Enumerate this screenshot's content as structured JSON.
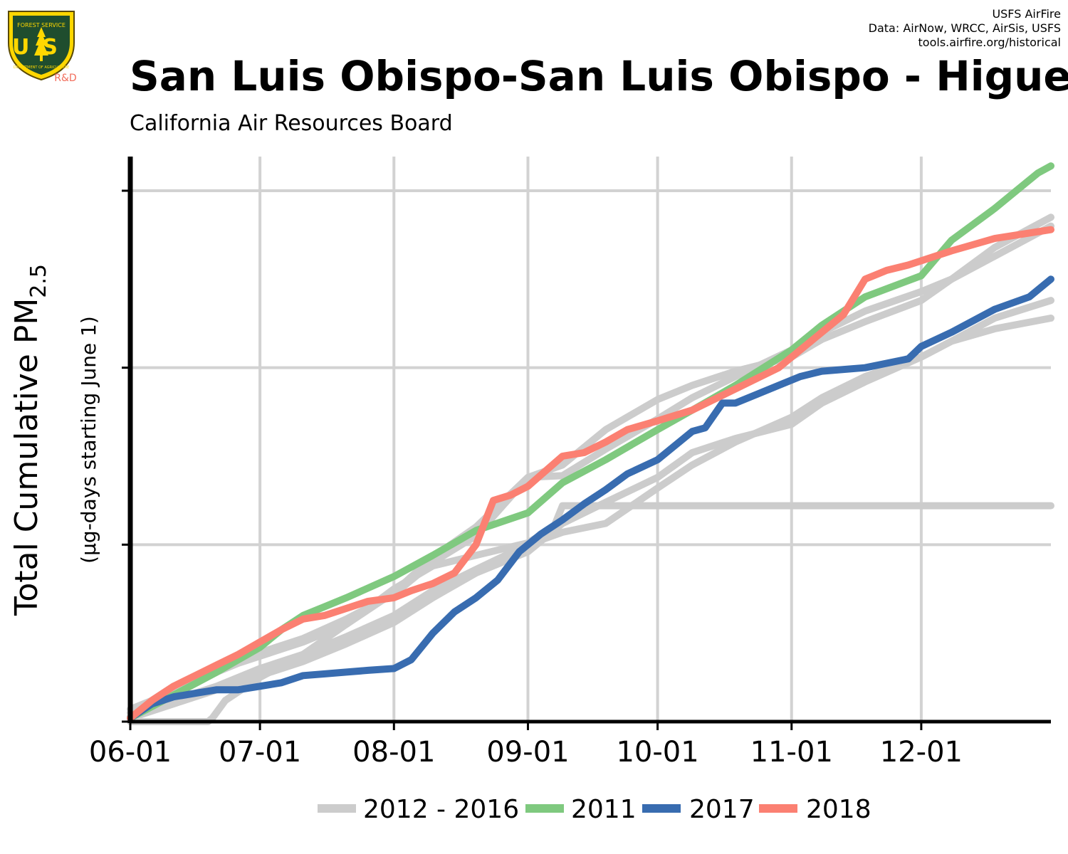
{
  "header": {
    "credits": [
      "USFS AirFire",
      "Data: AirNow, WRCC, AirSis, USFS",
      "tools.airfire.org/historical"
    ],
    "logo": {
      "text_top": "FOREST SERVICE",
      "text_main": "US",
      "text_bottom": "DEPARTMENT OF AGRICULTURE",
      "badge": "R&D"
    },
    "title": "San Luis Obispo-San Luis Obispo - Higue",
    "subtitle": "California Air Resources Board"
  },
  "chart_data": {
    "type": "line",
    "ylabel": "Total Cumulative PM",
    "ylabel_sub": "2.5",
    "ylabel2": "(μg-days starting June 1)",
    "x_tick_labels": [
      "06-01",
      "07-01",
      "08-01",
      "09-01",
      "10-01",
      "11-01",
      "12-01"
    ],
    "x_ticks_day": [
      0,
      30,
      61,
      92,
      122,
      153,
      183
    ],
    "xlim": [
      0,
      213
    ],
    "ylim": [
      0,
      3.2
    ],
    "y_ticks": [
      0,
      1,
      2,
      3
    ],
    "y_tick_labels_shown": false,
    "grid": true,
    "legend_position": "bottom",
    "legend": [
      {
        "label": "2012 - 2016",
        "color": "#cccccc"
      },
      {
        "label": "2011",
        "color": "#7fc97f"
      },
      {
        "label": "2017",
        "color": "#386cb0"
      },
      {
        "label": "2018",
        "color": "#fb8072"
      }
    ],
    "series": [
      {
        "name": "2012 - 2016",
        "color": "#cccccc",
        "x": [
          0,
          5,
          10,
          15,
          20,
          25,
          30,
          40,
          50,
          61,
          70,
          80,
          92,
          100,
          110,
          122,
          130,
          140,
          153,
          160,
          170,
          183,
          190,
          200,
          213
        ],
        "y": [
          0.07,
          0.12,
          0.2,
          0.25,
          0.31,
          0.36,
          0.39,
          0.47,
          0.58,
          0.72,
          0.9,
          1.05,
          1.38,
          1.39,
          1.54,
          1.71,
          1.83,
          1.95,
          2.1,
          2.2,
          2.32,
          2.43,
          2.5,
          2.63,
          2.8
        ]
      },
      {
        "name": "2012 - 2016",
        "color": "#cccccc",
        "x": [
          0,
          5,
          10,
          15,
          20,
          25,
          30,
          40,
          50,
          61,
          70,
          80,
          92,
          100,
          110,
          122,
          130,
          140,
          153,
          160,
          170,
          183,
          190,
          200,
          213
        ],
        "y": [
          0.03,
          0.1,
          0.16,
          0.22,
          0.28,
          0.33,
          0.37,
          0.45,
          0.55,
          0.73,
          0.93,
          1.1,
          1.38,
          1.45,
          1.65,
          1.82,
          1.9,
          1.98,
          2.06,
          2.16,
          2.26,
          2.38,
          2.5,
          2.68,
          2.85
        ]
      },
      {
        "name": "2012 - 2016",
        "color": "#cccccc",
        "x": [
          0,
          5,
          10,
          15,
          18,
          19,
          22,
          30,
          40,
          50,
          61,
          70,
          80,
          92,
          98,
          100,
          105,
          213
        ],
        "y": [
          0,
          0,
          0,
          0,
          0,
          0.02,
          0.12,
          0.25,
          0.38,
          0.55,
          0.75,
          0.88,
          0.94,
          1.01,
          1.1,
          1.22,
          1.22,
          1.22
        ]
      },
      {
        "name": "2012 - 2016",
        "color": "#cccccc",
        "x": [
          0,
          10,
          20,
          30,
          40,
          50,
          61,
          70,
          80,
          92,
          100,
          110,
          122,
          130,
          140,
          153,
          160,
          170,
          183,
          190,
          200,
          213
        ],
        "y": [
          0.05,
          0.12,
          0.2,
          0.3,
          0.38,
          0.48,
          0.6,
          0.74,
          0.86,
          1.0,
          1.07,
          1.12,
          1.32,
          1.45,
          1.58,
          1.72,
          1.83,
          1.95,
          2.06,
          2.15,
          2.22,
          2.28
        ]
      },
      {
        "name": "2012 - 2016",
        "color": "#cccccc",
        "x": [
          0,
          10,
          20,
          30,
          40,
          50,
          61,
          70,
          80,
          92,
          100,
          110,
          122,
          130,
          140,
          153,
          160,
          170,
          183,
          190,
          200,
          213
        ],
        "y": [
          0.02,
          0.1,
          0.18,
          0.26,
          0.34,
          0.44,
          0.56,
          0.7,
          0.84,
          0.96,
          1.12,
          1.24,
          1.38,
          1.52,
          1.6,
          1.68,
          1.8,
          1.92,
          2.06,
          2.15,
          2.28,
          2.38
        ]
      },
      {
        "name": "2011",
        "color": "#7fc97f",
        "x": [
          0,
          10,
          20,
          30,
          35,
          40,
          45,
          50,
          61,
          70,
          80,
          92,
          100,
          110,
          122,
          130,
          140,
          153,
          160,
          170,
          183,
          190,
          200,
          205,
          210,
          213
        ],
        "y": [
          0.02,
          0.15,
          0.28,
          0.42,
          0.52,
          0.6,
          0.65,
          0.7,
          0.82,
          0.94,
          1.08,
          1.18,
          1.35,
          1.48,
          1.65,
          1.76,
          1.9,
          2.1,
          2.24,
          2.4,
          2.52,
          2.72,
          2.9,
          3.0,
          3.1,
          3.14
        ]
      },
      {
        "name": "2017",
        "color": "#386cb0",
        "x": [
          0,
          5,
          10,
          15,
          20,
          25,
          30,
          35,
          40,
          45,
          50,
          55,
          61,
          65,
          70,
          75,
          80,
          85,
          90,
          95,
          100,
          105,
          110,
          115,
          122,
          130,
          133,
          137,
          140,
          145,
          150,
          155,
          160,
          170,
          180,
          183,
          190,
          200,
          208,
          213
        ],
        "y": [
          0.02,
          0.1,
          0.14,
          0.16,
          0.18,
          0.18,
          0.2,
          0.22,
          0.26,
          0.27,
          0.28,
          0.29,
          0.3,
          0.35,
          0.5,
          0.62,
          0.7,
          0.8,
          0.96,
          1.06,
          1.14,
          1.23,
          1.31,
          1.4,
          1.48,
          1.64,
          1.66,
          1.8,
          1.8,
          1.85,
          1.9,
          1.95,
          1.98,
          2.0,
          2.05,
          2.12,
          2.2,
          2.33,
          2.4,
          2.5
        ]
      },
      {
        "name": "2018",
        "color": "#fb8072",
        "x": [
          0,
          5,
          10,
          15,
          20,
          25,
          30,
          35,
          40,
          45,
          50,
          55,
          61,
          65,
          70,
          75,
          80,
          84,
          88,
          92,
          100,
          105,
          110,
          115,
          122,
          130,
          140,
          150,
          160,
          165,
          170,
          172,
          175,
          180,
          190,
          200,
          213
        ],
        "y": [
          0.02,
          0.12,
          0.2,
          0.26,
          0.32,
          0.38,
          0.45,
          0.52,
          0.58,
          0.6,
          0.64,
          0.68,
          0.7,
          0.74,
          0.78,
          0.84,
          1.0,
          1.25,
          1.28,
          1.33,
          1.5,
          1.52,
          1.58,
          1.65,
          1.7,
          1.76,
          1.88,
          2.0,
          2.2,
          2.3,
          2.5,
          2.52,
          2.55,
          2.58,
          2.66,
          2.73,
          2.78
        ]
      }
    ]
  }
}
